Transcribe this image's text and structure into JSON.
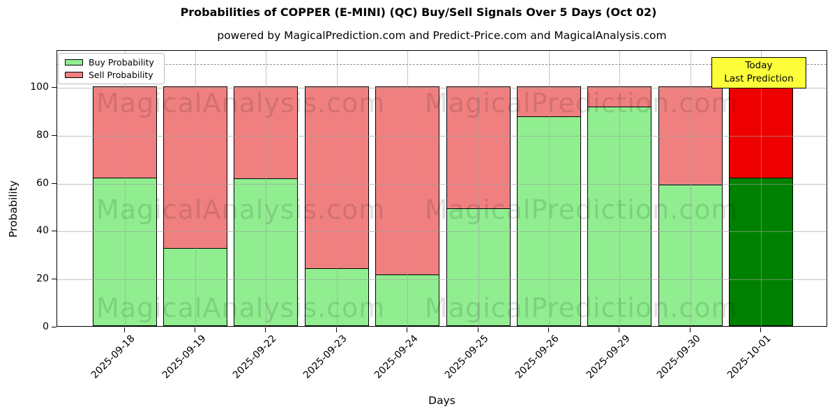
{
  "header": {
    "title": "Probabilities of COPPER (E-MINI) (QC) Buy/Sell Signals Over 5 Days (Oct 02)",
    "subtitle": "powered by MagicalPrediction.com and Predict-Price.com and MagicalAnalysis.com"
  },
  "legend": {
    "items": [
      {
        "label": "Buy Probability",
        "color": "#90ee90"
      },
      {
        "label": "Sell Probability",
        "color": "#f08080"
      }
    ]
  },
  "annotation": {
    "lines": [
      "Today",
      "Last Prediction"
    ],
    "bg_color": "#fdff3a"
  },
  "watermarks": {
    "left_text": "MagicalAnalysis.com",
    "right_text": "MagicalPrediction.com"
  },
  "axes": {
    "ylabel": "Probability",
    "xlabel": "Days",
    "yticks": [
      0,
      20,
      40,
      60,
      80,
      100
    ],
    "ylim": [
      0,
      115.5
    ],
    "dashed_line_y": 110,
    "grid": true
  },
  "chart_data": {
    "type": "bar",
    "stacked": true,
    "title": "Probabilities of COPPER (E-MINI) (QC) Buy/Sell Signals Over 5 Days (Oct 02)",
    "xlabel": "Days",
    "ylabel": "Probability",
    "ylim": [
      0,
      115.5
    ],
    "grid": true,
    "legend_position": "upper left",
    "categories": [
      "2025-09-18",
      "2025-09-19",
      "2025-09-22",
      "2025-09-23",
      "2025-09-24",
      "2025-09-25",
      "2025-09-26",
      "2025-09-29",
      "2025-09-30",
      "2025-10-01"
    ],
    "series": [
      {
        "name": "Buy Probability",
        "color": "#90ee90",
        "values": [
          62,
          32.5,
          61.5,
          24,
          21.5,
          49,
          87.5,
          91.5,
          59,
          62
        ]
      },
      {
        "name": "Sell Probability",
        "color": "#f08080",
        "values": [
          38,
          67.5,
          38.5,
          76,
          78.5,
          51,
          12.5,
          8.5,
          41,
          38
        ]
      }
    ],
    "last_bar": {
      "index": 9,
      "buy_color": "#008000",
      "sell_color": "#ee0000",
      "annotation": "Today / Last Prediction"
    }
  }
}
